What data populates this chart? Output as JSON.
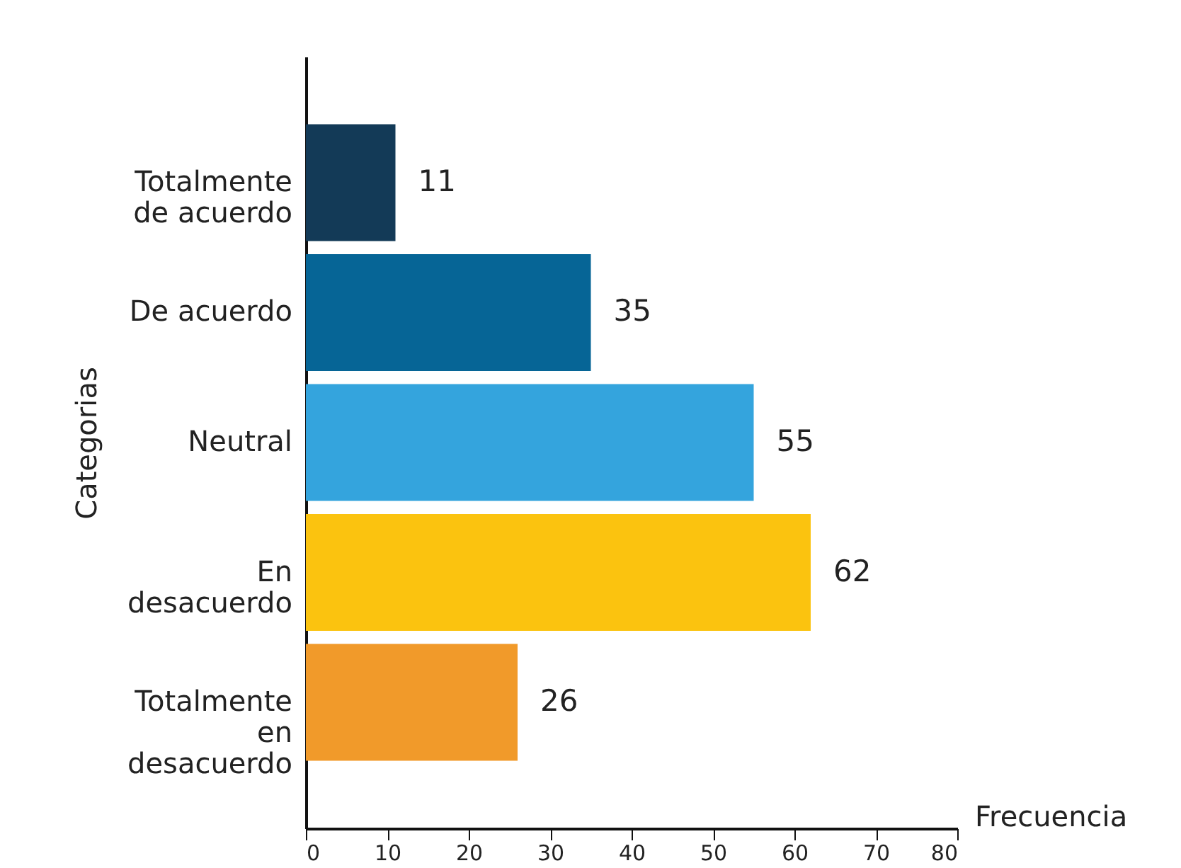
{
  "chart_data": {
    "type": "bar",
    "orientation": "horizontal",
    "xlabel": "Frecuencia",
    "ylabel": "Categorias",
    "categories": [
      "Totalmente\nde acuerdo",
      "De acuerdo",
      "Neutral",
      "En\ndesacuerdo",
      "Totalmente\nen\ndesacuerdo"
    ],
    "values": [
      11,
      35,
      55,
      62,
      26
    ],
    "colors": [
      "#133a57",
      "#066596",
      "#34a4dd",
      "#fbc30f",
      "#f19a2a"
    ],
    "xlim": [
      0,
      80
    ],
    "xticks": [
      0,
      10,
      20,
      30,
      40,
      50,
      60,
      70,
      80
    ],
    "data_labels": true,
    "grid": false
  }
}
